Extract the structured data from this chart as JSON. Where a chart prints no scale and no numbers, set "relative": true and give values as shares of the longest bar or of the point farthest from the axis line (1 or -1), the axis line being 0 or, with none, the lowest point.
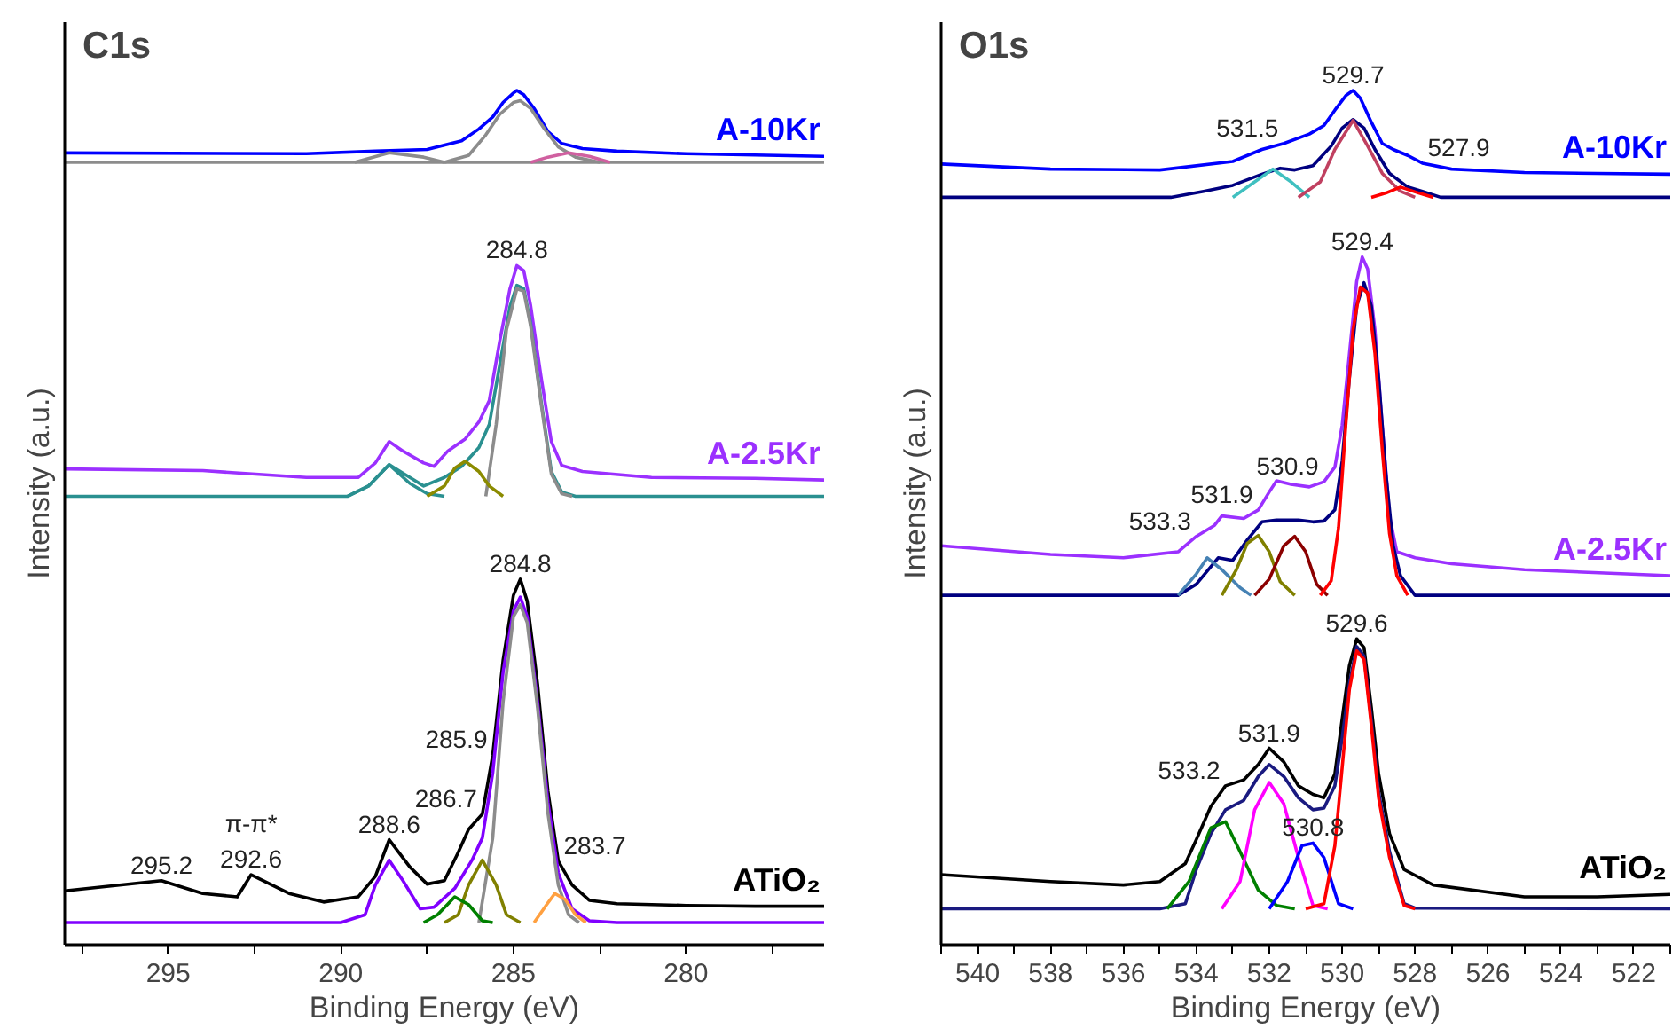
{
  "chart_data": [
    {
      "type": "line",
      "title": "C1s",
      "xlabel": "Binding Energy (eV)",
      "ylabel": "Intensity (a.u.)",
      "relative": true,
      "grid": false,
      "tick_labels": "x",
      "xlim": [
        298,
        276
      ],
      "xticks": [
        {
          "value": 297.5,
          "label": null
        },
        295,
        {
          "value": 292.5,
          "label": null
        },
        290,
        {
          "value": 287.5,
          "label": null
        },
        285,
        {
          "value": 282.5,
          "label": null
        },
        280,
        {
          "value": 277.5,
          "label": null
        }
      ],
      "series": [
        {
          "name": "A-10Kr",
          "color": "#0000ff",
          "x": [
            298,
            291,
            289,
            287.5,
            286.5,
            286.0,
            285.6,
            285.3,
            285.0,
            284.9,
            284.7,
            284.4,
            284.0,
            283.6,
            283,
            282,
            280,
            276
          ],
          "values": [
            0.927,
            0.926,
            0.929,
            0.931,
            0.941,
            0.955,
            0.969,
            0.986,
            0.997,
            1.0,
            0.995,
            0.979,
            0.952,
            0.938,
            0.932,
            0.929,
            0.926,
            0.923
          ]
        },
        {
          "color": "#8c8c8c",
          "x": [
            298,
            276
          ],
          "values": [
            0.916,
            0.916
          ]
        },
        {
          "color": "#8c8c8c",
          "x": [
            287.0,
            286.3,
            285.8,
            285.4,
            285.0,
            284.8,
            284.5,
            284.1,
            283.7,
            283.2,
            282.5
          ],
          "values": [
            0.916,
            0.924,
            0.948,
            0.972,
            0.986,
            0.988,
            0.979,
            0.955,
            0.934,
            0.922,
            0.916
          ]
        },
        {
          "color": "#8c8c8c",
          "x": [
            289.6,
            288.6,
            287.6,
            287.0
          ],
          "values": [
            0.916,
            0.927,
            0.922,
            0.916
          ]
        },
        {
          "color": "#d060a0",
          "x": [
            284.5,
            284.0,
            283.4,
            282.8,
            282.2
          ],
          "values": [
            0.916,
            0.922,
            0.927,
            0.923,
            0.916
          ]
        },
        {
          "name": "A-2.5Kr",
          "color": "#9b30ff",
          "x": [
            298,
            294,
            291,
            289.5,
            289,
            288.6,
            288.2,
            287.6,
            287.3,
            286.9,
            286.4,
            286.0,
            285.7,
            285.4,
            285.1,
            284.9,
            284.7,
            284.5,
            284.2,
            283.9,
            283.6,
            283.0,
            281,
            278,
            276
          ],
          "values": [
            0.557,
            0.555,
            0.547,
            0.547,
            0.564,
            0.589,
            0.578,
            0.564,
            0.56,
            0.578,
            0.592,
            0.612,
            0.637,
            0.706,
            0.768,
            0.795,
            0.789,
            0.748,
            0.665,
            0.589,
            0.561,
            0.554,
            0.547,
            0.546,
            0.544
          ]
        },
        {
          "color": "#2a9090",
          "x": [
            298,
            289.8,
            289.2,
            288.6,
            288.0,
            287.6,
            287.0,
            286.5,
            286.0,
            285.7,
            285.4,
            285.1,
            284.9,
            284.7,
            284.5,
            284.2,
            283.9,
            283.6,
            283.2,
            276
          ],
          "values": [
            0.525,
            0.525,
            0.537,
            0.562,
            0.547,
            0.537,
            0.547,
            0.56,
            0.582,
            0.609,
            0.678,
            0.747,
            0.772,
            0.768,
            0.727,
            0.637,
            0.554,
            0.53,
            0.525,
            0.525
          ]
        },
        {
          "color": "#8c8c8c",
          "x": [
            285.8,
            285.5,
            285.2,
            284.9,
            284.7,
            284.5,
            284.2,
            283.9,
            283.6,
            283.3
          ],
          "values": [
            0.525,
            0.609,
            0.72,
            0.768,
            0.765,
            0.724,
            0.634,
            0.551,
            0.528,
            0.525
          ]
        },
        {
          "color": "#2a9090",
          "x": [
            289.8,
            289.2,
            288.6,
            288.0,
            287.5,
            287.0
          ],
          "values": [
            0.525,
            0.537,
            0.562,
            0.54,
            0.528,
            0.525
          ]
        },
        {
          "color": "#8b8b00",
          "x": [
            287.5,
            287.0,
            286.7,
            286.4,
            286.0,
            285.7,
            285.3
          ],
          "values": [
            0.525,
            0.537,
            0.558,
            0.566,
            0.554,
            0.537,
            0.525
          ]
        },
        {
          "name": "ATiO₂",
          "color": "#000000",
          "x": [
            298,
            295.2,
            294,
            293,
            292.6,
            291.5,
            290.5,
            289.5,
            289,
            288.6,
            288,
            287.5,
            287,
            286.6,
            286.3,
            285.9,
            285.6,
            285.3,
            285.0,
            284.8,
            284.6,
            284.3,
            284.0,
            283.7,
            283.3,
            282.8,
            282,
            280,
            278,
            276
          ],
          "values": [
            0.063,
            0.075,
            0.06,
            0.056,
            0.082,
            0.06,
            0.05,
            0.056,
            0.08,
            0.123,
            0.091,
            0.071,
            0.075,
            0.108,
            0.135,
            0.153,
            0.222,
            0.333,
            0.409,
            0.428,
            0.402,
            0.305,
            0.18,
            0.098,
            0.07,
            0.052,
            0.048,
            0.046,
            0.045,
            0.045
          ]
        },
        {
          "color": "#8000ff",
          "x": [
            298,
            290,
            289.3,
            289,
            288.6,
            288.2,
            287.7,
            287.3,
            286.7,
            286.2,
            285.9,
            285.6,
            285.3,
            285.0,
            284.8,
            284.6,
            284.3,
            284.0,
            283.7,
            283.3,
            282.8,
            282,
            276
          ],
          "values": [
            0.026,
            0.026,
            0.035,
            0.07,
            0.099,
            0.075,
            0.042,
            0.044,
            0.066,
            0.099,
            0.125,
            0.201,
            0.319,
            0.391,
            0.407,
            0.384,
            0.284,
            0.167,
            0.084,
            0.042,
            0.028,
            0.026,
            0.026
          ]
        },
        {
          "color": "#8c8c8c",
          "x": [
            286.0,
            285.6,
            285.3,
            285.0,
            284.8,
            284.6,
            284.3,
            284.0,
            283.7,
            283.4,
            283.1
          ],
          "values": [
            0.026,
            0.125,
            0.284,
            0.384,
            0.398,
            0.377,
            0.277,
            0.154,
            0.07,
            0.035,
            0.026
          ]
        },
        {
          "color": "#808000",
          "x": [
            287.0,
            286.6,
            286.3,
            285.9,
            285.5,
            285.2,
            284.8
          ],
          "values": [
            0.026,
            0.035,
            0.07,
            0.099,
            0.07,
            0.035,
            0.026
          ]
        },
        {
          "color": "#008000",
          "x": [
            287.6,
            287.2,
            286.7,
            286.3,
            285.9,
            285.6
          ],
          "values": [
            0.026,
            0.035,
            0.056,
            0.047,
            0.028,
            0.026
          ]
        },
        {
          "color": "#ffa040",
          "x": [
            284.4,
            284.0,
            283.8,
            283.5,
            283.2,
            282.9
          ],
          "values": [
            0.026,
            0.049,
            0.06,
            0.053,
            0.035,
            0.026
          ]
        }
      ],
      "annotations": [
        {
          "text": "284.8",
          "x": 284.9,
          "y": 0.795
        },
        {
          "text": "284.8",
          "x": 284.8,
          "y": 0.428
        },
        {
          "text": "295.2",
          "x": 295.2,
          "y": 0.075
        },
        {
          "text": "292.6",
          "x": 292.6,
          "y": 0.082
        },
        {
          "text": "π-π*",
          "x": 292.6,
          "y": 0.082
        },
        {
          "text": "288.6",
          "x": 288.6,
          "y": 0.123
        },
        {
          "text": "286.7",
          "x": 285.9,
          "y": 0.153
        },
        {
          "text": "285.9",
          "x": 285.6,
          "y": 0.222
        },
        {
          "text": "283.7",
          "x": 283.7,
          "y": 0.098
        }
      ]
    },
    {
      "type": "line",
      "title": "O1s",
      "xlabel": "Binding Energy (eV)",
      "ylabel": "Intensity (a.u.)",
      "relative": true,
      "grid": false,
      "tick_labels": "x",
      "xlim": [
        541,
        521
      ],
      "xticks": [
        {
          "value": 541,
          "label": null
        },
        540,
        {
          "value": 539,
          "label": null
        },
        538,
        {
          "value": 537,
          "label": null
        },
        536,
        {
          "value": 535,
          "label": null
        },
        534,
        {
          "value": 533,
          "label": null
        },
        532,
        {
          "value": 531,
          "label": null
        },
        530,
        {
          "value": 529,
          "label": null
        },
        528,
        {
          "value": 527,
          "label": null
        },
        526,
        {
          "value": 525,
          "label": null
        },
        524,
        {
          "value": 523,
          "label": null
        },
        522,
        {
          "value": 521,
          "label": null
        }
      ],
      "series": [
        {
          "name": "A-10Kr",
          "color": "#0000ff",
          "x": [
            541,
            538,
            535,
            533,
            532.2,
            531.6,
            530.9,
            530.5,
            530.2,
            529.9,
            529.7,
            529.5,
            529.2,
            528.9,
            528.6,
            528.2,
            527.8,
            527.0,
            525,
            523,
            521
          ],
          "values": [
            0.914,
            0.908,
            0.907,
            0.917,
            0.931,
            0.938,
            0.949,
            0.959,
            0.977,
            0.994,
            1.0,
            0.991,
            0.963,
            0.938,
            0.931,
            0.924,
            0.915,
            0.908,
            0.904,
            0.903,
            0.902
          ]
        },
        {
          "color": "#000080",
          "x": [
            541,
            534.7,
            533.8,
            533,
            532.2,
            531.7,
            531.3,
            530.8,
            530.3,
            530.0,
            529.7,
            529.4,
            529.1,
            528.7,
            528.2,
            527.8,
            527.3,
            521
          ],
          "values": [
            0.875,
            0.875,
            0.882,
            0.889,
            0.902,
            0.909,
            0.907,
            0.912,
            0.935,
            0.956,
            0.966,
            0.956,
            0.931,
            0.903,
            0.887,
            0.882,
            0.875,
            0.875
          ]
        },
        {
          "color": "#40c0c0",
          "x": [
            533,
            532.4,
            531.9,
            531.4,
            530.9
          ],
          "values": [
            0.875,
            0.893,
            0.908,
            0.893,
            0.875
          ]
        },
        {
          "color": "#c04060",
          "x": [
            531.2,
            530.6,
            530.2,
            529.7,
            529.3,
            528.9,
            528.4,
            528.0
          ],
          "values": [
            0.875,
            0.893,
            0.931,
            0.965,
            0.935,
            0.903,
            0.882,
            0.875
          ]
        },
        {
          "color": "#ff0000",
          "x": [
            529.2,
            528.8,
            528.4,
            527.9,
            527.5
          ],
          "values": [
            0.875,
            0.88,
            0.887,
            0.88,
            0.875
          ]
        },
        {
          "name": "A-2.5Kr",
          "color": "#9b30ff",
          "x": [
            541,
            538,
            536,
            534.5,
            534,
            533.5,
            533.3,
            532.7,
            532.3,
            532.0,
            531.8,
            531.4,
            530.9,
            530.5,
            530.2,
            530.0,
            529.8,
            529.6,
            529.45,
            529.3,
            529.1,
            528.9,
            528.7,
            528.5,
            528,
            527,
            525,
            521
          ],
          "values": [
            0.467,
            0.457,
            0.453,
            0.46,
            0.478,
            0.491,
            0.502,
            0.499,
            0.509,
            0.53,
            0.543,
            0.539,
            0.536,
            0.542,
            0.559,
            0.608,
            0.692,
            0.777,
            0.805,
            0.791,
            0.72,
            0.608,
            0.502,
            0.46,
            0.453,
            0.446,
            0.439,
            0.432
          ]
        },
        {
          "color": "#000080",
          "x": [
            541,
            534.5,
            534.0,
            533.4,
            533.0,
            532.6,
            532.2,
            531.8,
            531.2,
            530.8,
            530.5,
            530.2,
            530.0,
            529.8,
            529.6,
            529.4,
            529.2,
            529.0,
            528.8,
            528.6,
            528.4,
            528.0,
            521
          ],
          "values": [
            0.409,
            0.409,
            0.422,
            0.453,
            0.45,
            0.474,
            0.495,
            0.497,
            0.497,
            0.495,
            0.496,
            0.509,
            0.566,
            0.664,
            0.748,
            0.775,
            0.748,
            0.664,
            0.552,
            0.467,
            0.432,
            0.409,
            0.409
          ]
        },
        {
          "color": "#4682b4",
          "x": [
            534.5,
            534.0,
            533.7,
            533.3,
            532.8,
            532.5
          ],
          "values": [
            0.409,
            0.434,
            0.453,
            0.439,
            0.418,
            0.409
          ]
        },
        {
          "color": "#808000",
          "x": [
            533.3,
            532.9,
            532.6,
            532.3,
            532.0,
            531.7,
            531.3
          ],
          "values": [
            0.409,
            0.439,
            0.47,
            0.479,
            0.46,
            0.425,
            0.409
          ]
        },
        {
          "color": "#8b0000",
          "x": [
            532.4,
            532.0,
            531.6,
            531.3,
            531.0,
            530.7,
            530.4
          ],
          "values": [
            0.409,
            0.428,
            0.467,
            0.478,
            0.46,
            0.422,
            0.409
          ]
        },
        {
          "color": "#ff0000",
          "x": [
            530.6,
            530.3,
            530.1,
            529.9,
            529.7,
            529.5,
            529.3,
            529.1,
            528.9,
            528.7,
            528.5,
            528.2
          ],
          "values": [
            0.409,
            0.426,
            0.488,
            0.608,
            0.72,
            0.77,
            0.763,
            0.692,
            0.58,
            0.481,
            0.432,
            0.409
          ]
        },
        {
          "name": "ATiO₂",
          "color": "#000000",
          "x": [
            541,
            538,
            536,
            535,
            534.3,
            534,
            533.6,
            533.2,
            532.7,
            532.3,
            532.0,
            531.6,
            531.2,
            530.8,
            530.5,
            530.2,
            530.0,
            529.8,
            529.6,
            529.4,
            529.2,
            529.0,
            528.7,
            528.3,
            527.5,
            525,
            523,
            521
          ],
          "values": [
            0.082,
            0.074,
            0.07,
            0.074,
            0.095,
            0.123,
            0.162,
            0.186,
            0.193,
            0.211,
            0.23,
            0.214,
            0.186,
            0.176,
            0.172,
            0.2,
            0.264,
            0.327,
            0.358,
            0.348,
            0.278,
            0.2,
            0.13,
            0.088,
            0.07,
            0.056,
            0.056,
            0.059
          ]
        },
        {
          "color": "#1a1a80",
          "x": [
            541,
            535,
            534.3,
            534,
            533.6,
            533.2,
            532.7,
            532.3,
            532.0,
            531.6,
            531.2,
            530.8,
            530.5,
            530.2,
            530.0,
            529.8,
            529.6,
            529.4,
            529.2,
            529.0,
            528.7,
            528.3,
            528,
            521
          ],
          "values": [
            0.042,
            0.042,
            0.048,
            0.088,
            0.13,
            0.158,
            0.169,
            0.197,
            0.211,
            0.197,
            0.172,
            0.158,
            0.16,
            0.186,
            0.242,
            0.306,
            0.349,
            0.338,
            0.264,
            0.179,
            0.109,
            0.048,
            0.043,
            0.042
          ]
        },
        {
          "color": "#008000",
          "x": [
            534.8,
            534.2,
            533.6,
            533.2,
            532.8,
            532.3,
            531.8,
            531.3
          ],
          "values": [
            0.042,
            0.074,
            0.137,
            0.144,
            0.109,
            0.064,
            0.046,
            0.042
          ]
        },
        {
          "color": "#ff00ff",
          "x": [
            533.3,
            532.8,
            532.4,
            532.0,
            531.6,
            531.2,
            530.8,
            530.4
          ],
          "values": [
            0.042,
            0.074,
            0.158,
            0.19,
            0.165,
            0.102,
            0.046,
            0.042
          ]
        },
        {
          "color": "#0000ff",
          "x": [
            532.0,
            531.5,
            531.1,
            530.8,
            530.5,
            530.1,
            529.7
          ],
          "values": [
            0.042,
            0.074,
            0.116,
            0.119,
            0.102,
            0.048,
            0.042
          ]
        },
        {
          "color": "#ff0000",
          "x": [
            531.0,
            530.5,
            530.2,
            530.0,
            529.8,
            529.6,
            529.4,
            529.2,
            529.0,
            528.7,
            528.3,
            528.0
          ],
          "values": [
            0.042,
            0.048,
            0.116,
            0.207,
            0.299,
            0.344,
            0.334,
            0.257,
            0.172,
            0.102,
            0.046,
            0.042
          ]
        }
      ],
      "annotations": [
        {
          "text": "529.7",
          "x": 529.7,
          "y": 1.0
        },
        {
          "text": "531.5",
          "x": 531.6,
          "y": 0.938
        },
        {
          "text": "527.9",
          "x": 527.8,
          "y": 0.915
        },
        {
          "text": "529.4",
          "x": 529.45,
          "y": 0.805
        },
        {
          "text": "531.9",
          "x": 532.3,
          "y": 0.509
        },
        {
          "text": "530.9",
          "x": 530.5,
          "y": 0.542
        },
        {
          "text": "533.3",
          "x": 534.0,
          "y": 0.478
        },
        {
          "text": "529.6",
          "x": 529.6,
          "y": 0.358
        },
        {
          "text": "531.9",
          "x": 532.0,
          "y": 0.23
        },
        {
          "text": "533.2",
          "x": 533.2,
          "y": 0.186
        },
        {
          "text": "530.8",
          "x": 530.8,
          "y": 0.119
        }
      ]
    }
  ]
}
